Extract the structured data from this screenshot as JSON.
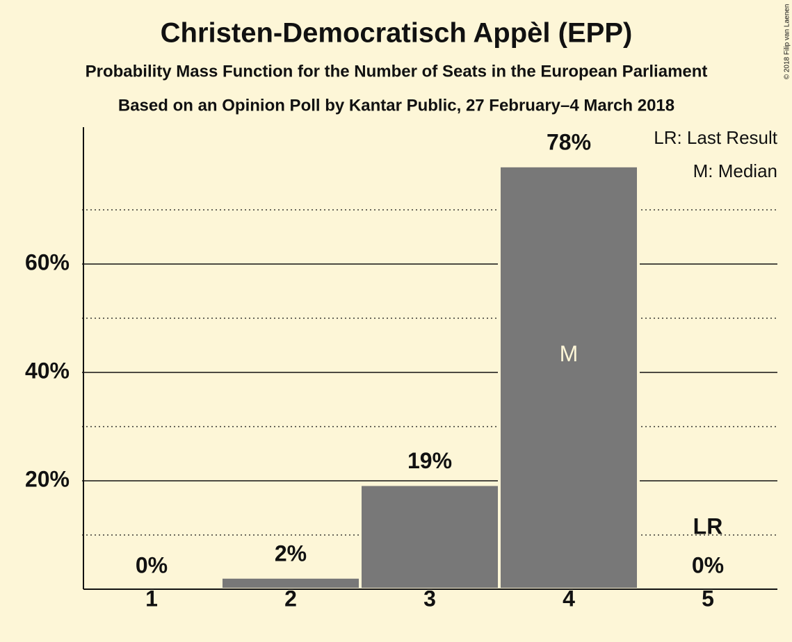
{
  "chart_data": {
    "type": "bar",
    "title": "Christen-Democratisch Appèl (EPP)",
    "subtitle": "Probability Mass Function for the Number of Seats in the European Parliament",
    "subtitle2": "Based on an Opinion Poll by Kantar Public, 27 February–4 March 2018",
    "copyright": "© 2018 Filip van Laenen",
    "categories": [
      "1",
      "2",
      "3",
      "4",
      "5"
    ],
    "values": [
      0,
      2.2,
      19.3,
      78.1,
      0
    ],
    "value_labels": [
      "0%",
      "2%",
      "19%",
      "78%",
      "0%"
    ],
    "color": "#787878",
    "ylim": [
      0,
      85
    ],
    "yticks": [
      {
        "value": 20,
        "label": "20%"
      },
      {
        "value": 40,
        "label": "40%"
      },
      {
        "value": 60,
        "label": "60%"
      }
    ],
    "minor_yticks": [
      10,
      30,
      50,
      70
    ],
    "grid": true,
    "annotations": [
      {
        "text": "M",
        "category": "4"
      },
      {
        "text": "LR",
        "category": "5"
      }
    ],
    "legend": [
      "LR: Last Result",
      "M: Median"
    ]
  }
}
